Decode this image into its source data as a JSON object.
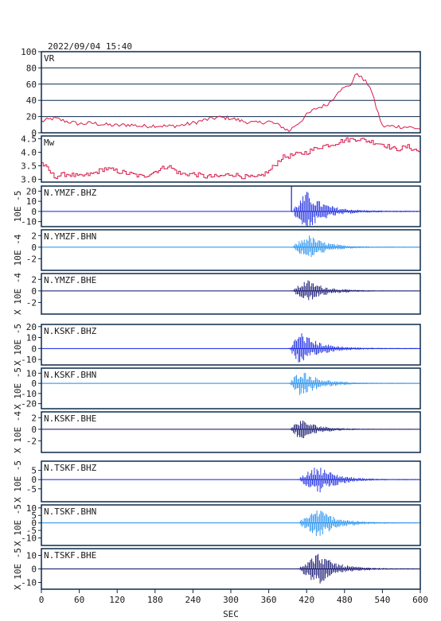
{
  "header": {
    "datetime": "2022/09/04  15:40"
  },
  "chart_data": {
    "type": "line",
    "x_label": "SEC",
    "x_range": [
      0,
      600
    ],
    "x_ticks": [
      0,
      60,
      120,
      180,
      240,
      300,
      360,
      420,
      480,
      540,
      600
    ],
    "colors": {
      "frame": "#0b2a4a",
      "vr_line": "#d81a4a",
      "bhz": "#1020e0",
      "bhn": "#1a8cf0",
      "bhe": "#0a0a6a",
      "grid": "#0b2a4a"
    },
    "panels": [
      {
        "kind": "vr",
        "label": "VR",
        "y_range": [
          0,
          100
        ],
        "y_ticks": [
          0,
          20,
          40,
          60,
          80,
          100
        ],
        "grid": true,
        "points": [
          [
            0,
            14
          ],
          [
            20,
            18
          ],
          [
            40,
            14
          ],
          [
            60,
            11
          ],
          [
            80,
            12
          ],
          [
            100,
            10
          ],
          [
            120,
            9
          ],
          [
            140,
            10
          ],
          [
            160,
            8
          ],
          [
            180,
            9
          ],
          [
            200,
            8
          ],
          [
            220,
            9
          ],
          [
            240,
            12
          ],
          [
            260,
            16
          ],
          [
            280,
            19
          ],
          [
            300,
            18
          ],
          [
            320,
            14
          ],
          [
            340,
            12
          ],
          [
            360,
            14
          ],
          [
            380,
            8
          ],
          [
            392,
            2
          ],
          [
            400,
            8
          ],
          [
            410,
            14
          ],
          [
            420,
            22
          ],
          [
            435,
            30
          ],
          [
            450,
            34
          ],
          [
            460,
            40
          ],
          [
            470,
            52
          ],
          [
            480,
            55
          ],
          [
            490,
            60
          ],
          [
            500,
            74
          ],
          [
            510,
            65
          ],
          [
            520,
            58
          ],
          [
            530,
            32
          ],
          [
            540,
            8
          ],
          [
            560,
            8
          ],
          [
            580,
            7
          ],
          [
            600,
            5
          ]
        ]
      },
      {
        "kind": "mw",
        "label": "Mw",
        "y_range": [
          2.9,
          4.6
        ],
        "y_ticks": [
          3.0,
          3.5,
          4.0,
          4.5
        ],
        "grid": false,
        "points": [
          [
            0,
            3.6
          ],
          [
            20,
            3.1
          ],
          [
            40,
            3.2
          ],
          [
            60,
            3.1
          ],
          [
            80,
            3.2
          ],
          [
            100,
            3.4
          ],
          [
            120,
            3.3
          ],
          [
            140,
            3.2
          ],
          [
            160,
            3.1
          ],
          [
            180,
            3.3
          ],
          [
            200,
            3.5
          ],
          [
            220,
            3.2
          ],
          [
            240,
            3.2
          ],
          [
            260,
            3.1
          ],
          [
            280,
            3.1
          ],
          [
            300,
            3.2
          ],
          [
            320,
            3.1
          ],
          [
            340,
            3.05
          ],
          [
            360,
            3.3
          ],
          [
            380,
            3.8
          ],
          [
            400,
            3.9
          ],
          [
            420,
            4.0
          ],
          [
            440,
            4.2
          ],
          [
            460,
            4.3
          ],
          [
            480,
            4.45
          ],
          [
            500,
            4.5
          ],
          [
            520,
            4.4
          ],
          [
            540,
            4.3
          ],
          [
            560,
            4.1
          ],
          [
            580,
            4.2
          ],
          [
            600,
            4.0
          ]
        ]
      },
      {
        "kind": "seis",
        "label": "N.YMZF.BHZ",
        "y_label": "10E -5",
        "y_range": [
          -15,
          25
        ],
        "y_ticks": [
          -10,
          0,
          10,
          20
        ],
        "onset": 400,
        "peak_at": 420,
        "peak_amp": 20,
        "color_key": "bhz"
      },
      {
        "kind": "seis",
        "label": "N.YMZF.BHN",
        "y_label": "10E -4",
        "y_range": [
          -4,
          3
        ],
        "y_ticks": [
          -2,
          0,
          2
        ],
        "onset": 400,
        "peak_at": 422,
        "peak_amp": 2.2,
        "color_key": "bhn"
      },
      {
        "kind": "seis",
        "label": "N.YMZF.BHE",
        "y_label": "X 10E -4",
        "y_range": [
          -4,
          3
        ],
        "y_ticks": [
          -2,
          0,
          2
        ],
        "onset": 400,
        "peak_at": 420,
        "peak_amp": 2.0,
        "color_key": "bhe"
      },
      {
        "kind": "seis",
        "label": "N.KSKF.BHZ",
        "y_label": "X 10E -5",
        "y_range": [
          -15,
          22
        ],
        "y_ticks": [
          -10,
          0,
          10,
          20
        ],
        "onset": 395,
        "peak_at": 410,
        "peak_amp": 16,
        "color_key": "bhz"
      },
      {
        "kind": "seis",
        "label": "N.KSKF.BHN",
        "y_label": "X 10E -5",
        "y_range": [
          -25,
          15
        ],
        "y_ticks": [
          -20,
          -10,
          0,
          10
        ],
        "onset": 395,
        "peak_at": 410,
        "peak_amp": 14,
        "color_key": "bhn"
      },
      {
        "kind": "seis",
        "label": "N.KSKF.BHE",
        "y_label": "X 10E -4",
        "y_range": [
          -4,
          3
        ],
        "y_ticks": [
          -2,
          0,
          2
        ],
        "onset": 395,
        "peak_at": 410,
        "peak_amp": 1.8,
        "color_key": "bhe"
      },
      {
        "kind": "seis",
        "label": "N.TSKF.BHZ",
        "y_label": "X 10E -5",
        "y_range": [
          -12,
          10
        ],
        "y_ticks": [
          -5,
          0,
          5
        ],
        "onset": 410,
        "peak_at": 438,
        "peak_amp": 8,
        "color_key": "bhz"
      },
      {
        "kind": "seis",
        "label": "N.TSKF.BHN",
        "y_label": "X 10E -5",
        "y_range": [
          -15,
          12
        ],
        "y_ticks": [
          -10,
          -5,
          0,
          5,
          10
        ],
        "onset": 410,
        "peak_at": 438,
        "peak_amp": 10,
        "color_key": "bhn"
      },
      {
        "kind": "seis",
        "label": "N.TSKF.BHE",
        "y_label": "X 10E -5",
        "y_range": [
          -15,
          15
        ],
        "y_ticks": [
          -10,
          0,
          10
        ],
        "onset": 410,
        "peak_at": 438,
        "peak_amp": 12,
        "color_key": "bhe"
      }
    ]
  }
}
